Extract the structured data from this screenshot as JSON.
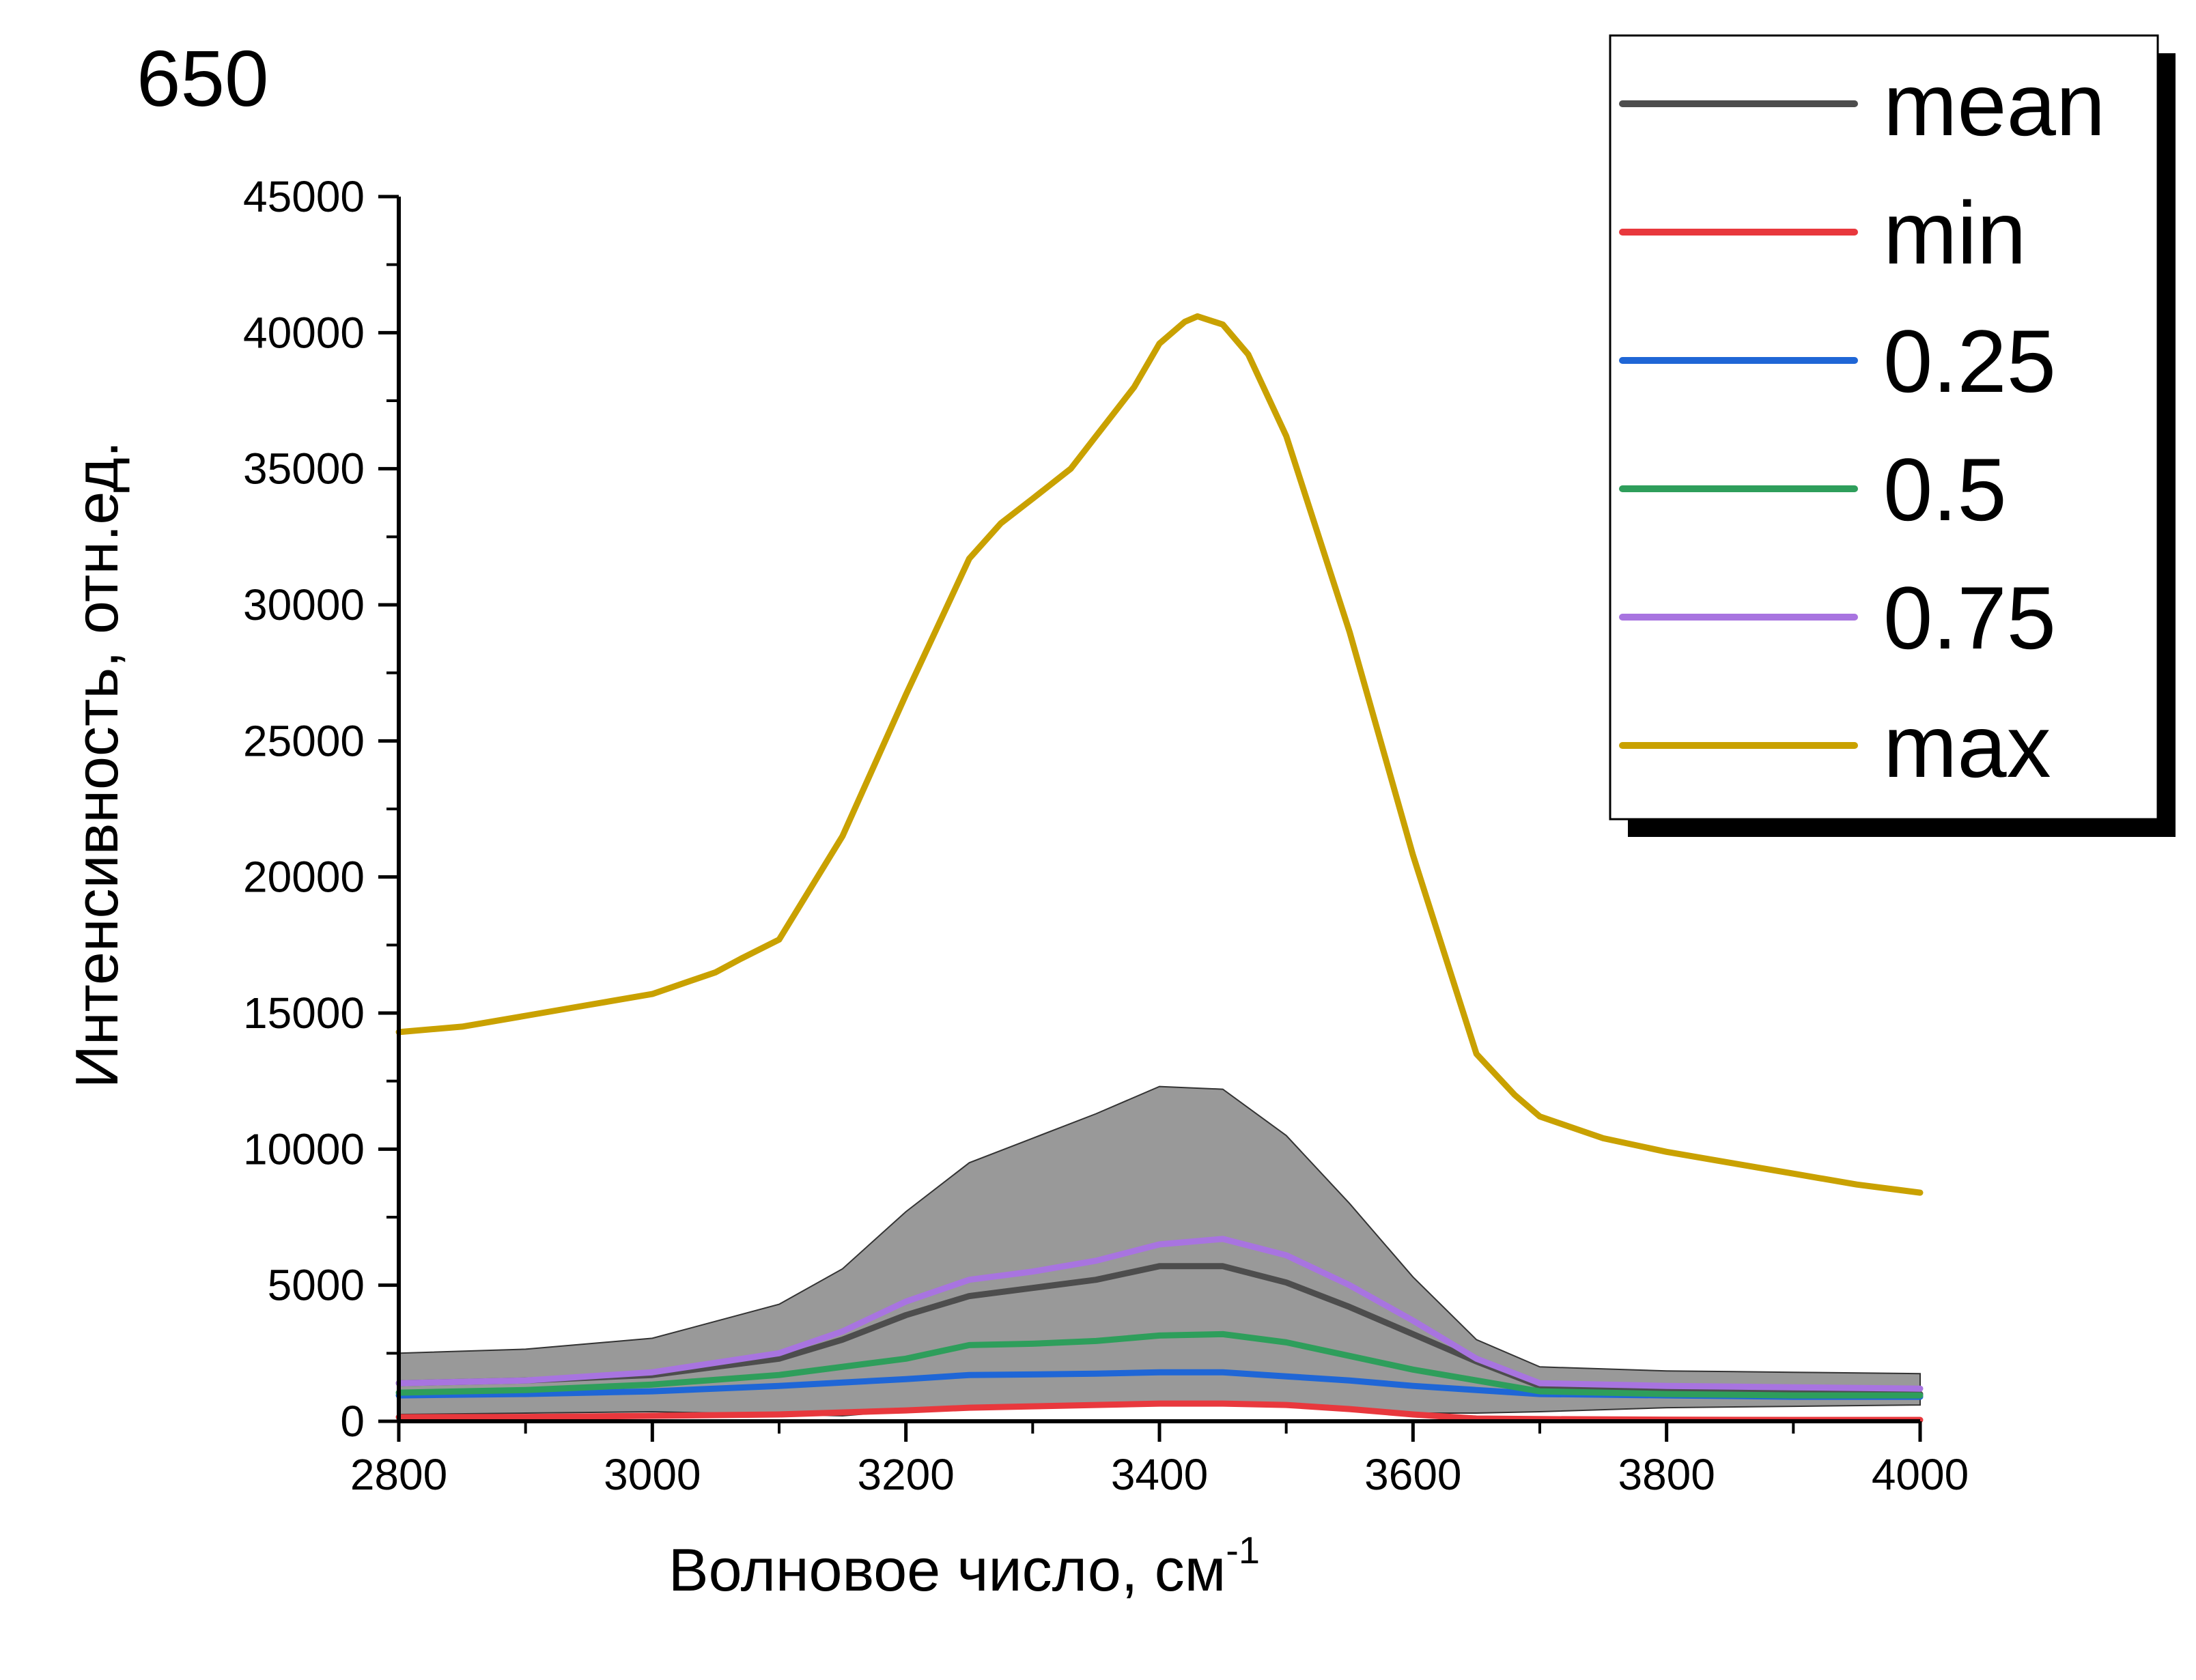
{
  "panel_label": "650",
  "chart_data": {
    "type": "line",
    "xlabel": "Волновое число, см",
    "xlabel_sup": "-1",
    "ylabel": "Интенсивность, отн.ед.",
    "xlim": [
      2800,
      4000
    ],
    "ylim": [
      0,
      45000
    ],
    "xticks": [
      "2800",
      "3000",
      "3200",
      "3400",
      "3600",
      "3800",
      "4000"
    ],
    "yticks": [
      "0",
      "5000",
      "10000",
      "15000",
      "20000",
      "25000",
      "30000",
      "35000",
      "40000",
      "45000"
    ],
    "legend_position": "top-right",
    "band": {
      "fill": "#999999",
      "x": [
        2800,
        2900,
        3000,
        3100,
        3150,
        3200,
        3250,
        3300,
        3350,
        3400,
        3450,
        3500,
        3550,
        3600,
        3650,
        3700,
        3800,
        3900,
        4000
      ],
      "upper": [
        2500,
        2650,
        3050,
        4300,
        5600,
        7700,
        9500,
        10400,
        11300,
        12300,
        12200,
        10500,
        8000,
        5300,
        3000,
        2000,
        1850,
        1800,
        1750
      ],
      "lower": [
        250,
        300,
        350,
        250,
        200,
        400,
        500,
        550,
        650,
        700,
        700,
        600,
        400,
        300,
        300,
        350,
        500,
        550,
        600
      ]
    },
    "series": [
      {
        "name": "mean",
        "color": "#4d4d4d",
        "x": [
          2800,
          2900,
          3000,
          3100,
          3150,
          3200,
          3250,
          3300,
          3350,
          3400,
          3450,
          3500,
          3550,
          3600,
          3650,
          3700,
          3800,
          3900,
          4000
        ],
        "y": [
          1400,
          1500,
          1700,
          2300,
          3000,
          3900,
          4600,
          4900,
          5200,
          5700,
          5700,
          5100,
          4200,
          3200,
          2200,
          1300,
          1100,
          1050,
          1000
        ]
      },
      {
        "name": "min",
        "color": "#e8383d",
        "x": [
          2800,
          2900,
          3000,
          3100,
          3200,
          3250,
          3300,
          3350,
          3400,
          3450,
          3500,
          3550,
          3600,
          3650,
          3700,
          3800,
          3900,
          4000
        ],
        "y": [
          150,
          160,
          200,
          250,
          400,
          500,
          550,
          600,
          650,
          650,
          600,
          450,
          250,
          100,
          80,
          60,
          50,
          50
        ]
      },
      {
        "name": "0.25",
        "color": "#1f66d6",
        "x": [
          2800,
          2900,
          3000,
          3100,
          3200,
          3250,
          3300,
          3350,
          3400,
          3450,
          3500,
          3550,
          3600,
          3650,
          3700,
          3800,
          3900,
          4000
        ],
        "y": [
          950,
          1000,
          1100,
          1300,
          1550,
          1700,
          1720,
          1750,
          1800,
          1800,
          1650,
          1500,
          1300,
          1150,
          1000,
          950,
          900,
          900
        ]
      },
      {
        "name": "0.5",
        "color": "#2e9e5b",
        "x": [
          2800,
          2900,
          3000,
          3100,
          3200,
          3250,
          3300,
          3350,
          3400,
          3450,
          3500,
          3550,
          3600,
          3650,
          3700,
          3800,
          3900,
          4000
        ],
        "y": [
          1050,
          1150,
          1350,
          1700,
          2300,
          2800,
          2850,
          2950,
          3150,
          3200,
          2900,
          2400,
          1900,
          1500,
          1100,
          1000,
          950,
          950
        ]
      },
      {
        "name": "0.75",
        "color": "#a874e0",
        "x": [
          2800,
          2900,
          3000,
          3100,
          3150,
          3200,
          3250,
          3300,
          3350,
          3400,
          3450,
          3500,
          3550,
          3600,
          3650,
          3700,
          3800,
          3900,
          4000
        ],
        "y": [
          1400,
          1500,
          1800,
          2500,
          3300,
          4400,
          5200,
          5500,
          5900,
          6500,
          6700,
          6100,
          5000,
          3700,
          2300,
          1400,
          1300,
          1250,
          1200
        ]
      },
      {
        "name": "max",
        "color": "#c9a100",
        "x": [
          2800,
          2850,
          2900,
          2950,
          3000,
          3050,
          3070,
          3100,
          3150,
          3200,
          3230,
          3250,
          3275,
          3300,
          3330,
          3350,
          3380,
          3400,
          3420,
          3430,
          3450,
          3470,
          3500,
          3550,
          3600,
          3650,
          3680,
          3700,
          3750,
          3800,
          3850,
          3900,
          3950,
          4000
        ],
        "y": [
          14300,
          14500,
          14900,
          15300,
          15700,
          16500,
          17000,
          17700,
          21500,
          26700,
          29700,
          31700,
          33000,
          33900,
          35000,
          36200,
          38000,
          39600,
          40400,
          40600,
          40300,
          39200,
          36200,
          29000,
          20800,
          13500,
          12000,
          11200,
          10400,
          9900,
          9500,
          9100,
          8700,
          8400
        ]
      }
    ]
  }
}
